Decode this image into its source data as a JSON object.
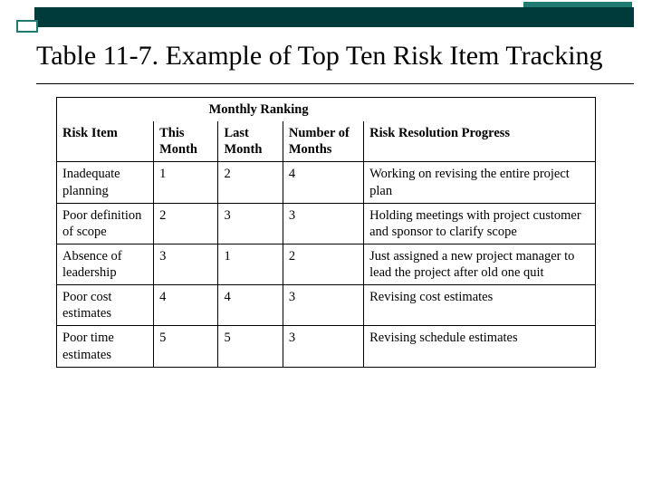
{
  "colors": {
    "bar_main": "#003b3b",
    "bar_accent": "#1f7a6f",
    "text": "#000000",
    "background": "#ffffff",
    "border": "#000000"
  },
  "title": "Table 11-7. Example of Top Ten Risk Item Tracking",
  "table": {
    "span_header": "Monthly Ranking",
    "columns": {
      "risk_item": "Risk Item",
      "this_month": "This Month",
      "last_month": "Last Month",
      "num_months": "Number of Months",
      "progress": "Risk Resolution Progress"
    },
    "rows": [
      {
        "risk_item": "Inadequate planning",
        "this_month": "1",
        "last_month": "2",
        "num_months": "4",
        "progress": "Working on revising the entire project plan"
      },
      {
        "risk_item": "Poor definition of scope",
        "this_month": "2",
        "last_month": "3",
        "num_months": "3",
        "progress": "Holding meetings with project customer and sponsor to clarify scope"
      },
      {
        "risk_item": "Absence of leadership",
        "this_month": "3",
        "last_month": "1",
        "num_months": "2",
        "progress": "Just assigned a new project manager to lead the project after old one quit"
      },
      {
        "risk_item": "Poor cost estimates",
        "this_month": "4",
        "last_month": "4",
        "num_months": "3",
        "progress": "Revising cost estimates"
      },
      {
        "risk_item": "Poor time estimates",
        "this_month": "5",
        "last_month": "5",
        "num_months": "3",
        "progress": "Revising schedule estimates"
      }
    ]
  },
  "typography": {
    "title_fontsize_pt": 22,
    "table_fontsize_pt": 11,
    "font_family": "Times New Roman"
  }
}
